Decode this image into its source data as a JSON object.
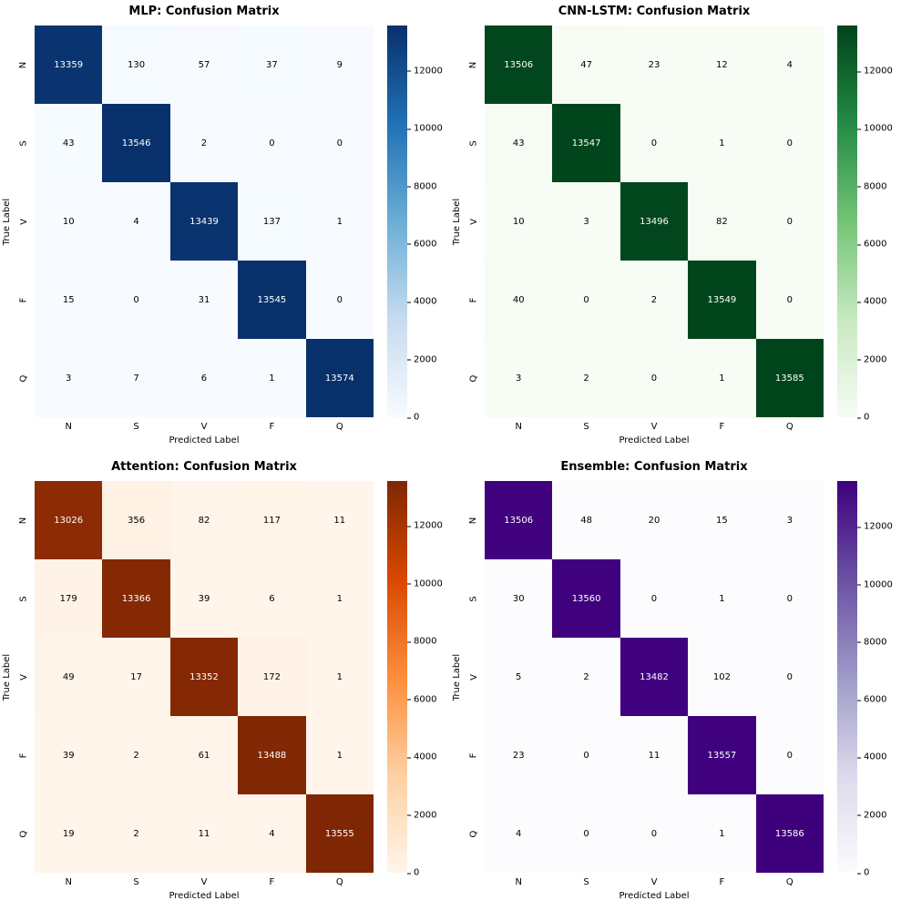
{
  "figure": {
    "background": "#ffffff"
  },
  "chart_data": [
    {
      "type": "heatmap",
      "title": "MLP: Confusion Matrix",
      "xlabel": "Predicted Label",
      "ylabel": "True Label",
      "categories": [
        "N",
        "S",
        "V",
        "F",
        "Q"
      ],
      "matrix": [
        [
          13359,
          130,
          57,
          37,
          9
        ],
        [
          43,
          13546,
          2,
          0,
          0
        ],
        [
          10,
          4,
          13439,
          137,
          1
        ],
        [
          15,
          0,
          31,
          13545,
          0
        ],
        [
          3,
          7,
          6,
          1,
          13574
        ]
      ],
      "colormap": "Blues",
      "colors": [
        "#f7fbff",
        "#c6dbef",
        "#6baed6",
        "#2171b5",
        "#08306b"
      ],
      "colorbar_ticks": [
        0,
        2000,
        4000,
        6000,
        8000,
        10000,
        12000
      ],
      "legend_position": "right-colorbar",
      "grid": false
    },
    {
      "type": "heatmap",
      "title": "CNN-LSTM: Confusion Matrix",
      "xlabel": "Predicted Label",
      "ylabel": "True Label",
      "categories": [
        "N",
        "S",
        "V",
        "F",
        "Q"
      ],
      "matrix": [
        [
          13506,
          47,
          23,
          12,
          4
        ],
        [
          43,
          13547,
          0,
          1,
          0
        ],
        [
          10,
          3,
          13496,
          82,
          0
        ],
        [
          40,
          0,
          2,
          13549,
          0
        ],
        [
          3,
          2,
          0,
          1,
          13585
        ]
      ],
      "colormap": "Greens",
      "colors": [
        "#f7fcf5",
        "#c7e9c0",
        "#74c476",
        "#238b45",
        "#00441b"
      ],
      "colorbar_ticks": [
        0,
        2000,
        4000,
        6000,
        8000,
        10000,
        12000
      ],
      "legend_position": "right-colorbar",
      "grid": false
    },
    {
      "type": "heatmap",
      "title": "Attention: Confusion Matrix",
      "xlabel": "Predicted Label",
      "ylabel": "True Label",
      "categories": [
        "N",
        "S",
        "V",
        "F",
        "Q"
      ],
      "matrix": [
        [
          13026,
          356,
          82,
          117,
          11
        ],
        [
          179,
          13366,
          39,
          6,
          1
        ],
        [
          49,
          17,
          13352,
          172,
          1
        ],
        [
          39,
          2,
          61,
          13488,
          1
        ],
        [
          19,
          2,
          11,
          4,
          13555
        ]
      ],
      "colormap": "Oranges",
      "colors": [
        "#fff5eb",
        "#fdd0a2",
        "#fd8d3c",
        "#d94801",
        "#7f2704"
      ],
      "colorbar_ticks": [
        0,
        2000,
        4000,
        6000,
        8000,
        10000,
        12000
      ],
      "legend_position": "right-colorbar",
      "grid": false
    },
    {
      "type": "heatmap",
      "title": "Ensemble: Confusion Matrix",
      "xlabel": "Predicted Label",
      "ylabel": "True Label",
      "categories": [
        "N",
        "S",
        "V",
        "F",
        "Q"
      ],
      "matrix": [
        [
          13506,
          48,
          20,
          15,
          3
        ],
        [
          30,
          13560,
          0,
          1,
          0
        ],
        [
          5,
          2,
          13482,
          102,
          0
        ],
        [
          23,
          0,
          11,
          13557,
          0
        ],
        [
          4,
          0,
          0,
          1,
          13586
        ]
      ],
      "colormap": "Purples",
      "colors": [
        "#fcfbfd",
        "#dadaeb",
        "#9e9ac8",
        "#6a51a3",
        "#3f007d"
      ],
      "colorbar_ticks": [
        0,
        2000,
        4000,
        6000,
        8000,
        10000,
        12000
      ],
      "legend_position": "right-colorbar",
      "grid": false
    }
  ]
}
